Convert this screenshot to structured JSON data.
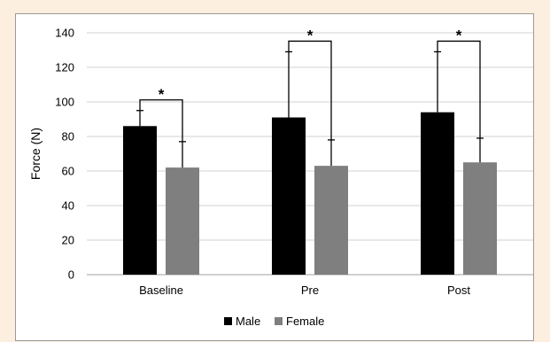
{
  "chart_data": {
    "type": "bar",
    "title": "",
    "xlabel": "",
    "ylabel": "Force (N)",
    "ylim": [
      0,
      140
    ],
    "yticks": [
      "0",
      "20",
      "40",
      "60",
      "80",
      "100",
      "120",
      "140"
    ],
    "categories": [
      "Baseline",
      "Pre",
      "Post"
    ],
    "series": [
      {
        "name": "Male",
        "color": "#000000",
        "values": [
          86,
          91,
          94
        ],
        "error": [
          9,
          38,
          35
        ]
      },
      {
        "name": "Female",
        "color": "#7f7f7f",
        "values": [
          62,
          63,
          65
        ],
        "error": [
          15,
          15,
          14
        ]
      }
    ],
    "significance": [
      {
        "category": "Baseline",
        "label": "*"
      },
      {
        "category": "Pre",
        "label": "*"
      },
      {
        "category": "Post",
        "label": "*"
      }
    ],
    "grid": true,
    "legend_position": "bottom"
  }
}
